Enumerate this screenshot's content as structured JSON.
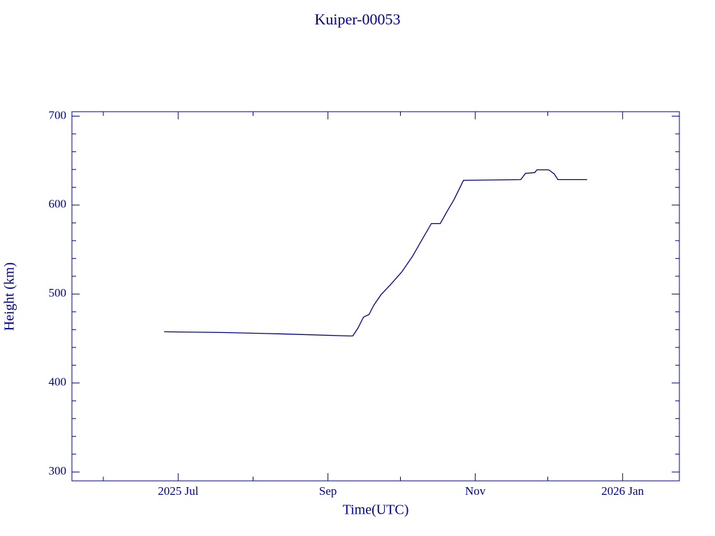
{
  "chart_data": {
    "type": "line",
    "title": "Kuiper-00053",
    "xlabel": "Time(UTC)",
    "ylabel": "Height (km)",
    "color": "#00008b",
    "x": [
      176.2,
      200,
      225,
      252.9,
      254.3,
      256.4,
      258.7,
      261,
      263,
      265.9,
      270.3,
      274.6,
      279,
      281.8,
      286.8,
      290.5,
      293.4,
      296.3,
      300.1,
      323.8,
      325.8,
      329.6,
      330.5,
      335.4,
      337.7,
      339.2,
      351.3
    ],
    "series": [
      {
        "name": "Height",
        "color": "#00008b",
        "values": [
          457.6,
          456.8,
          455.2,
          452.9,
          453,
          461.6,
          474,
          477,
          487.5,
          499,
          511.8,
          525,
          542.4,
          555.7,
          579.2,
          579.2,
          593.3,
          606.7,
          627.8,
          628.6,
          635.7,
          636.5,
          639.6,
          639.6,
          635,
          628.6,
          628.6
        ]
      }
    ],
    "xlim": [
      138,
      389.5
    ],
    "xticks": [
      {
        "value": 182,
        "label": "2025 Jul"
      },
      {
        "value": 244,
        "label": "Sep"
      },
      {
        "value": 305,
        "label": "Nov"
      },
      {
        "value": 366,
        "label": "2026 Jan"
      }
    ],
    "xminorticks": [
      151,
      213,
      274,
      335
    ],
    "ylim": [
      290,
      705
    ],
    "yticks": [
      300,
      400,
      500,
      600,
      700
    ],
    "yminorticks": [
      320,
      340,
      360,
      380,
      420,
      440,
      460,
      480,
      520,
      540,
      560,
      580,
      620,
      640,
      660,
      680
    ]
  }
}
